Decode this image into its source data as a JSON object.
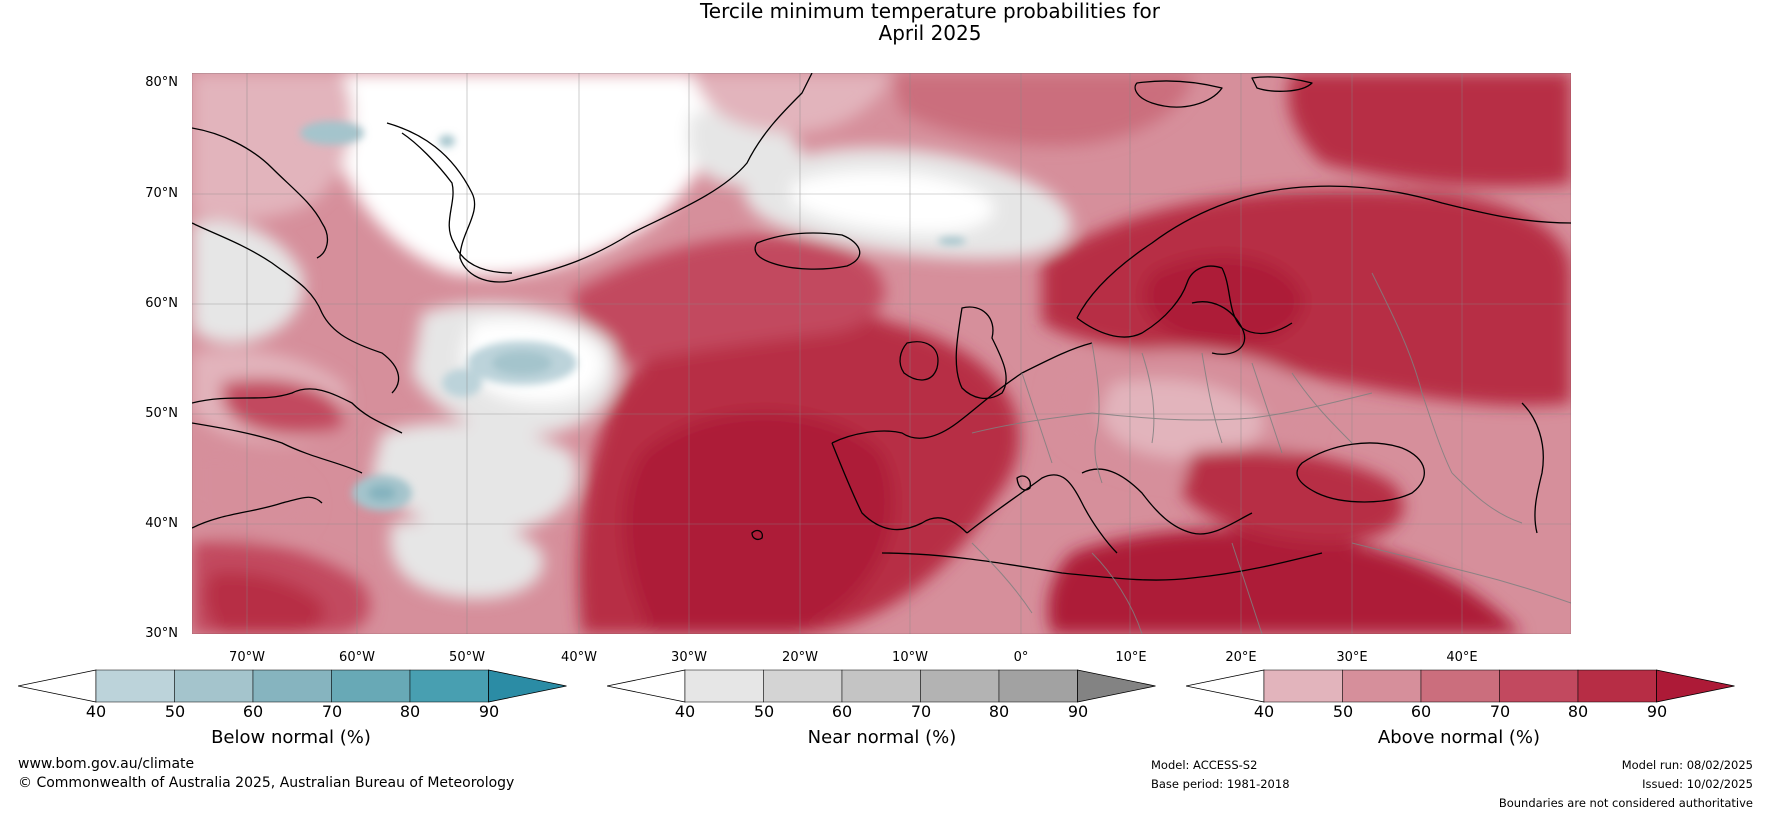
{
  "header": {
    "title_line1": "Tercile minimum temperature probabilities for",
    "title_line2": "April 2025"
  },
  "map": {
    "lat_labels": [
      "80°N",
      "70°N",
      "60°N",
      "50°N",
      "40°N",
      "30°N"
    ],
    "lon_labels": [
      "70°W",
      "60°W",
      "50°W",
      "40°W",
      "30°W",
      "20°W",
      "10°W",
      "0°",
      "10°E",
      "20°E",
      "30°E",
      "40°E"
    ]
  },
  "legends": [
    {
      "title": "Below normal (%)",
      "ticks": [
        "40",
        "50",
        "60",
        "70",
        "80",
        "90"
      ],
      "colors": [
        "#ffffff",
        "#bcd3da",
        "#a4c4cc",
        "#86b4bf",
        "#68a9b6",
        "#489fb1",
        "#2b8ca5"
      ]
    },
    {
      "title": "Near normal (%)",
      "ticks": [
        "40",
        "50",
        "60",
        "70",
        "80",
        "90"
      ],
      "colors": [
        "#ffffff",
        "#e6e6e6",
        "#d4d4d4",
        "#c4c4c4",
        "#b3b3b3",
        "#a2a2a2",
        "#838383"
      ]
    },
    {
      "title": "Above normal (%)",
      "ticks": [
        "40",
        "50",
        "60",
        "70",
        "80",
        "90"
      ],
      "colors": [
        "#ffffff",
        "#e2b4bc",
        "#d68f9b",
        "#cb6e7d",
        "#c2495f",
        "#b72d45",
        "#ad1a37"
      ]
    }
  ],
  "footer": {
    "website": "www.bom.gov.au/climate",
    "copyright": "© Commonwealth of Australia 2025, Australian Bureau of Meteorology",
    "model": "Model: ACCESS-S2",
    "base_period": "Base period: 1981-2018",
    "model_run": "Model run: 08/02/2025",
    "issued": "Issued: 10/02/2025",
    "disclaimer": "Boundaries are not considered authoritative"
  }
}
